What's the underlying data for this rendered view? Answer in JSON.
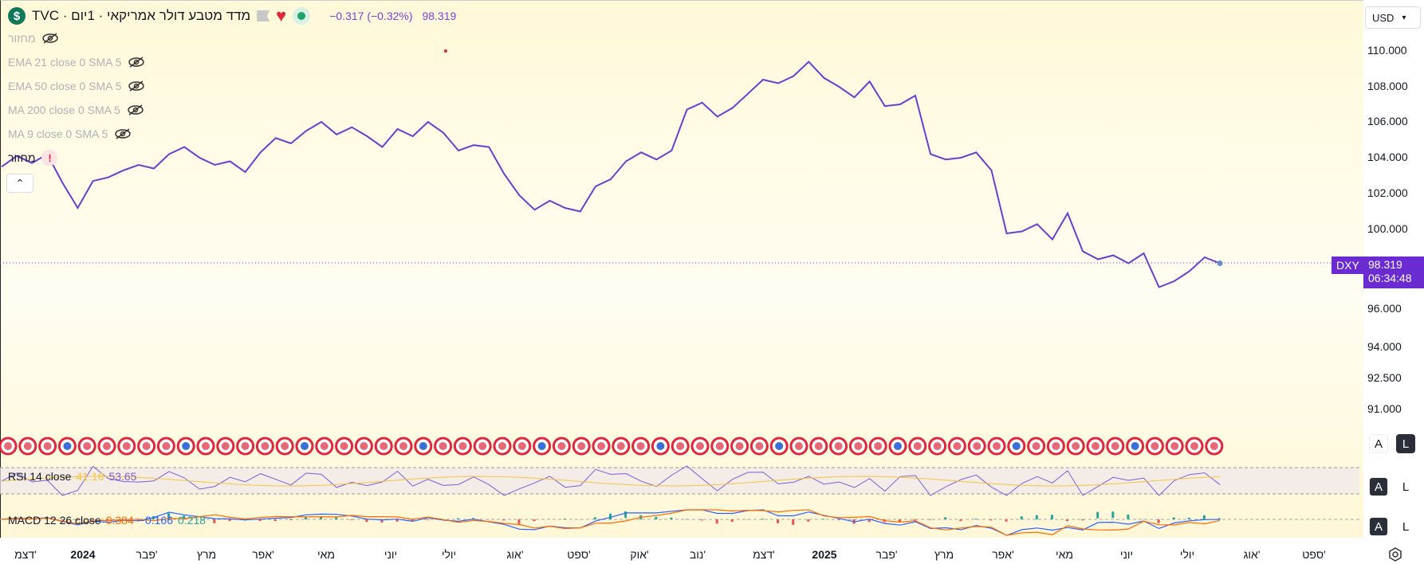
{
  "header": {
    "symbol_title": "מדד מטבע דולר אמריקאי · 1יום · TVC",
    "change": "−0.317 (−0.32%)",
    "last_price": "98.319"
  },
  "indicators": [
    {
      "label": "מחזור"
    },
    {
      "label": "EMA 21 close 0 SMA 5"
    },
    {
      "label": "EMA 50 close 0 SMA 5"
    },
    {
      "label": "MA 200 close 0 SMA 5"
    },
    {
      "label": "MA 9 close 0 SMA 5"
    }
  ],
  "volume_warning_label": "מחזור",
  "currency": "USD",
  "price_axis": [
    "110.000",
    "108.000",
    "106.000",
    "104.000",
    "102.000",
    "100.000",
    "96.000",
    "94.000",
    "92.500",
    "91.000"
  ],
  "price_tag": {
    "symbol": "DXY",
    "price": "98.319",
    "countdown": "06:34:48"
  },
  "rsi": {
    "label": "RSI 14 close",
    "v1": "41.16",
    "v2": "53.65"
  },
  "macd": {
    "label": "MACD 12 26 close",
    "v1": "0.384",
    "v2": "−0.166",
    "v3": "0.218"
  },
  "scale_buttons": {
    "a": "A",
    "l": "L"
  },
  "time_axis": [
    "דצמ'",
    "2024",
    "פבר'",
    "מרץ",
    "אפר'",
    "מאי",
    "יוני",
    "יולי",
    "אוג'",
    "ספט'",
    "אוק'",
    "נוב'",
    "דצמ'",
    "2025",
    "פבר'",
    "מרץ",
    "אפר'",
    "מאי",
    "יוני",
    "יולי",
    "אוג'",
    "ספט'"
  ],
  "colors": {
    "line": "#6a3fd0",
    "rsi_line": "#7b5fd6",
    "rsi_ma": "#f5c542",
    "macd": "#2962ff",
    "signal": "#ff6d00",
    "tag": "#6a2bd1"
  },
  "chart_data": {
    "type": "line",
    "title": "מדד מטבע דולר אמריקאי · 1יום · TVC",
    "series": [
      {
        "values": [
          103.5,
          104.1,
          103.7,
          104.2,
          102.6,
          101.2,
          102.7,
          102.9,
          103.3,
          103.6,
          103.4,
          104.2,
          104.6,
          104.0,
          103.6,
          103.8,
          103.2,
          104.3,
          105.1,
          104.8,
          105.5,
          106.0,
          105.3,
          105.7,
          105.2,
          104.6,
          105.6,
          105.2,
          106.0,
          105.4,
          104.4,
          104.7,
          104.6,
          103.1,
          101.9,
          101.1,
          101.6,
          101.2,
          101.0,
          102.4,
          102.8,
          103.8,
          104.3,
          103.9,
          104.4,
          106.7,
          107.1,
          106.3,
          106.8,
          107.6,
          108.4,
          108.2,
          108.6,
          109.4,
          108.5,
          108.0,
          107.4,
          108.3,
          106.9,
          107.0,
          107.5,
          104.2,
          103.9,
          104.0,
          104.3,
          103.3,
          99.8,
          99.9,
          100.3,
          99.5,
          100.9,
          98.9,
          98.5,
          98.7,
          98.3,
          98.8,
          97.1,
          97.4,
          97.9,
          98.6,
          98.3
        ]
      }
    ],
    "ylim": [
      90,
      111
    ],
    "y_ticks": [
      110,
      108,
      106,
      104,
      102,
      100,
      96,
      94,
      92.5,
      91
    ],
    "grid": false
  }
}
